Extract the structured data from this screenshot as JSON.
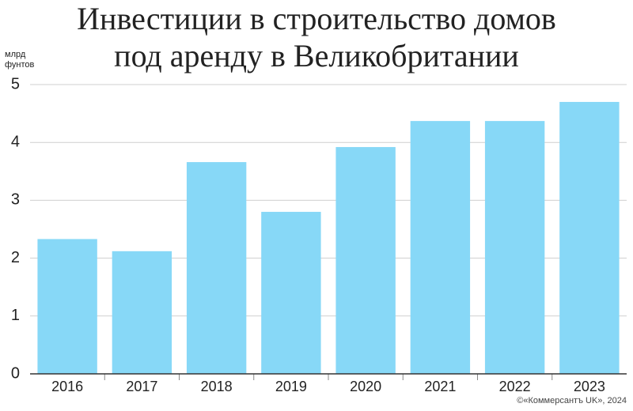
{
  "chart_data": {
    "type": "bar",
    "title": [
      "Инвестиции в строительство домов",
      "под аренду в Великобритании"
    ],
    "ylabel": [
      "млрд",
      "фунтов"
    ],
    "source": "©«Коммерсантъ UK», 2024",
    "categories": [
      "2016",
      "2017",
      "2018",
      "2019",
      "2020",
      "2021",
      "2022",
      "2023"
    ],
    "values": [
      2.33,
      2.12,
      3.66,
      2.8,
      3.92,
      4.37,
      4.37,
      4.7
    ],
    "color": "#87d8f7",
    "ylim": [
      0,
      5
    ],
    "yticks": [
      0,
      1,
      2,
      3,
      4,
      5
    ],
    "grid": true
  }
}
